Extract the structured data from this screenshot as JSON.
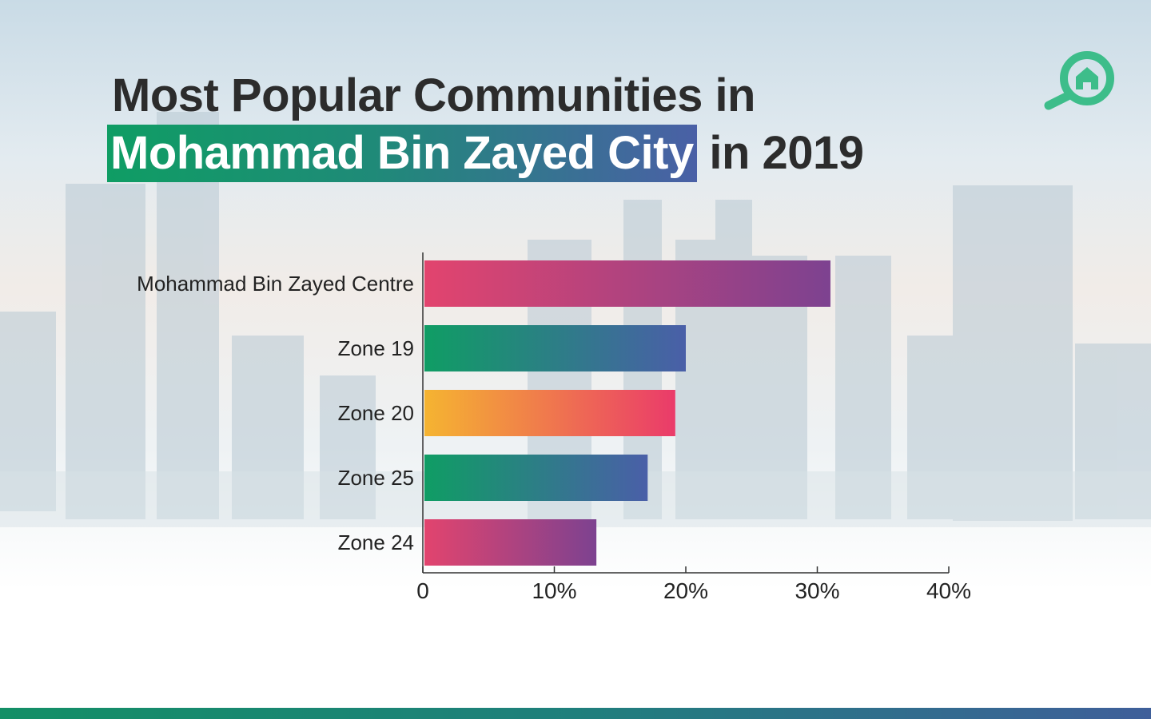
{
  "title": {
    "line1": "Most Popular Communities in",
    "highlight": "Mohammad Bin Zayed City",
    "suffix": " in 2019"
  },
  "logo_icon": "house-magnifier-icon",
  "colors": {
    "brand_green": "#3dbd8a",
    "title_text": "#2c2c2c",
    "footer_start": "#138f66",
    "footer_end": "#3f5f9a"
  },
  "chart_data": {
    "type": "bar",
    "orientation": "horizontal",
    "categories": [
      "Mohammad Bin Zayed Centre",
      "Zone 19",
      "Zone 20",
      "Zone 25",
      "Zone 24"
    ],
    "values": [
      31,
      20,
      19.2,
      17.1,
      13.2
    ],
    "xlim": [
      0,
      40
    ],
    "x_ticks": [
      "0",
      "10%",
      "20%",
      "30%",
      "40%"
    ],
    "x_tick_values": [
      0,
      10,
      20,
      30,
      40
    ],
    "grid": false,
    "bar_gradients": [
      [
        "#e2446e",
        "#7d4290"
      ],
      [
        "#0f9d64",
        "#4a5fa8"
      ],
      [
        "#f5b431",
        "#ea3b6a"
      ],
      [
        "#0f9d64",
        "#4a5fa8"
      ],
      [
        "#e2446e",
        "#7d4290"
      ]
    ]
  }
}
